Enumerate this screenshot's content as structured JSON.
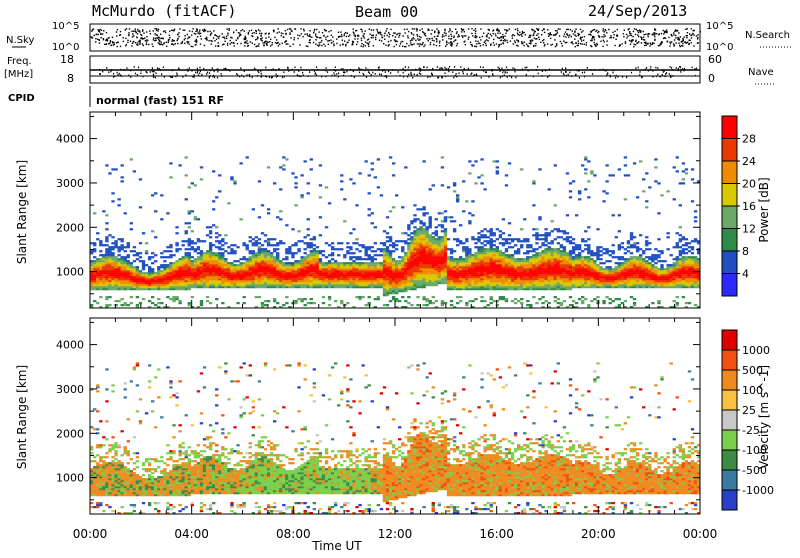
{
  "header": {
    "station": "McMurdo (fitACF)",
    "beam": "Beam 00",
    "date": "24/Sep/2013"
  },
  "noise_panel": {
    "left_label": "N.Sky",
    "right_label": "N.Search",
    "left_ticks": [
      "10^5",
      "10^0"
    ],
    "right_ticks": [
      "10^5",
      "10^0"
    ]
  },
  "freq_panel": {
    "left_label_1": "Freq.",
    "left_label_2": "[MHz]",
    "right_label": "Nave",
    "left_ticks": [
      "18",
      "8"
    ],
    "right_ticks": [
      "60",
      "0"
    ]
  },
  "cpid": {
    "label": "CPID",
    "value": "normal (fast) 151 RF"
  },
  "chart_data": [
    {
      "type": "heatmap",
      "name": "power",
      "ylabel": "Slant Range [km]",
      "ylim": [
        180,
        4600
      ],
      "yticks": [
        "1000",
        "2000",
        "3000",
        "4000"
      ],
      "colorbar_label": "Power [dB]",
      "colorbar_ticks": [
        "28",
        "24",
        "20",
        "16",
        "12",
        "8",
        "4"
      ],
      "colorbar_colors": [
        "#2a2aff",
        "#1f4fc0",
        "#2f8a4a",
        "#6aa86a",
        "#d8c800",
        "#f08a00",
        "#e83a00",
        "#ff0000"
      ],
      "grid": false
    },
    {
      "type": "heatmap",
      "name": "velocity",
      "ylabel": "Slant Range [km]",
      "ylim": [
        180,
        4600
      ],
      "yticks": [
        "1000",
        "2000",
        "3000",
        "4000"
      ],
      "colorbar_label": "Velocity [m s^-1]",
      "colorbar_ticks": [
        "1000",
        "500",
        "100",
        "25",
        "-25",
        "-100",
        "-500",
        "-1000"
      ],
      "colorbar_colors": [
        "#2a3ec8",
        "#3a7aa0",
        "#3c8a46",
        "#7ad04a",
        "#c8c8c8",
        "#f8c040",
        "#f08a20",
        "#f05010",
        "#e00000"
      ],
      "grid": false
    }
  ],
  "time_axis": {
    "label": "Time UT",
    "ticks": [
      "00:00",
      "04:00",
      "08:00",
      "12:00",
      "16:00",
      "20:00",
      "00:00"
    ]
  }
}
